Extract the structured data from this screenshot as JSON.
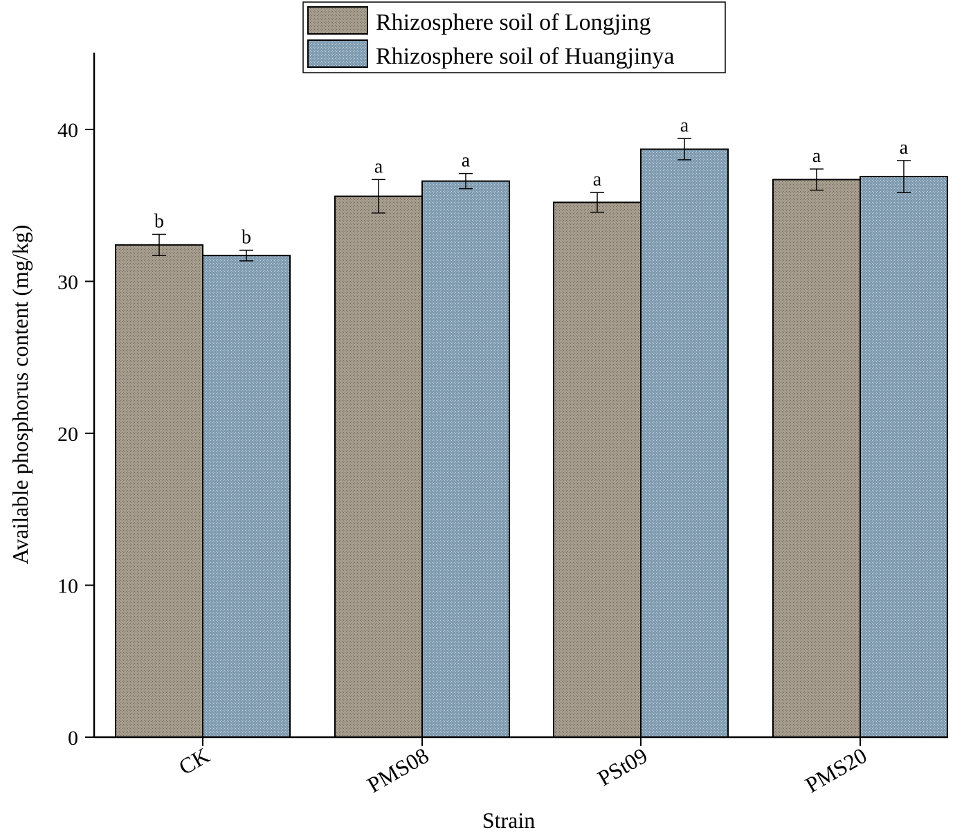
{
  "chart_data": {
    "type": "bar",
    "title": "",
    "xlabel": "Strain",
    "ylabel": "Available phosphorus content (mg/kg)",
    "ylim": [
      0,
      45
    ],
    "yticks": [
      0,
      10,
      20,
      30,
      40
    ],
    "grid": false,
    "legend_position": "top-center",
    "categories": [
      "CK",
      "PMS08",
      "PSt09",
      "PMS20"
    ],
    "series": [
      {
        "name": "Rhizosphere soil of Longjing",
        "color": "#a79d8e",
        "values": [
          32.4,
          35.6,
          35.2,
          36.7
        ],
        "errors": [
          0.7,
          1.1,
          0.65,
          0.7
        ],
        "labels": [
          "b",
          "a",
          "a",
          "a"
        ]
      },
      {
        "name": "Rhizosphere soil of Huangjinya",
        "color": "#7f9bb0",
        "values": [
          31.7,
          36.6,
          38.7,
          36.9
        ],
        "errors": [
          0.35,
          0.5,
          0.7,
          1.05
        ],
        "labels": [
          "b",
          "a",
          "a",
          "a"
        ]
      }
    ]
  }
}
